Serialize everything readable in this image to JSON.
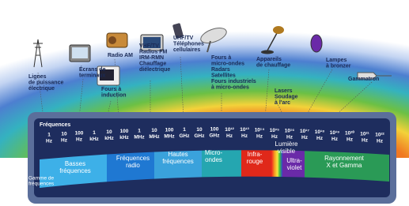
{
  "sources": [
    {
      "lines": [
        "Lignes",
        "de puissance",
        "électrique"
      ]
    },
    {
      "lines": [
        "Écrans de",
        "terminaux"
      ]
    },
    {
      "lines": [
        "Radio AM"
      ]
    },
    {
      "lines": [
        "Fours à",
        "induction"
      ]
    },
    {
      "lines": [
        "VHF/TV",
        "Radios FM",
        "IRM-RMN",
        "Chauffage",
        "diélectrique"
      ]
    },
    {
      "lines": [
        "UHF/TV",
        "Téléphones",
        "cellulaires"
      ]
    },
    {
      "lines": [
        "Fours à",
        "micro-ondes",
        "Radars",
        "Satellites",
        "Fours industriels",
        "à micro-ondes"
      ]
    },
    {
      "lines": [
        "Appareils",
        "de chauffage"
      ]
    },
    {
      "lines": [
        "Lasers",
        "Soudage",
        "à l'arc"
      ]
    },
    {
      "lines": [
        "Lampes",
        "à bronzer"
      ]
    },
    {
      "lines": [
        "Gammatron"
      ]
    }
  ],
  "frequency_label": "Fréquences",
  "range_label": [
    "Gamme de",
    "fréquences"
  ],
  "ticks": [
    {
      "number": "1",
      "unit": "Hz"
    },
    {
      "number": "10",
      "unit": "Hz"
    },
    {
      "number": "100",
      "unit": "Hz"
    },
    {
      "number": "1",
      "unit": "kHz"
    },
    {
      "number": "10",
      "unit": "kHz"
    },
    {
      "number": "100",
      "unit": "kHz"
    },
    {
      "number": "1",
      "unit": "MHz"
    },
    {
      "number": "10",
      "unit": "MHz"
    },
    {
      "number": "100",
      "unit": "MHz"
    },
    {
      "number": "1",
      "unit": "GHz"
    },
    {
      "number": "10",
      "unit": "GHz"
    },
    {
      "number": "100",
      "unit": "GHz"
    },
    {
      "number": "10¹²",
      "unit": "Hz"
    },
    {
      "number": "10¹³",
      "unit": "Hz"
    },
    {
      "number": "10¹⁴",
      "unit": "Hz"
    },
    {
      "number": "10¹⁵",
      "unit": "Hz"
    },
    {
      "number": "10¹⁶",
      "unit": "Hz"
    },
    {
      "number": "10¹⁷",
      "unit": "Hz"
    },
    {
      "number": "10¹⁸",
      "unit": "Hz"
    },
    {
      "number": "10¹⁹",
      "unit": "Hz"
    },
    {
      "number": "10²⁰",
      "unit": "Hz"
    },
    {
      "number": "10²¹",
      "unit": "Hz"
    },
    {
      "number": "10²²",
      "unit": "Hz"
    }
  ],
  "bands": [
    {
      "lines": [
        "Basses",
        "fréquences"
      ]
    },
    {
      "lines": [
        "Fréquences",
        "radio"
      ]
    },
    {
      "lines": [
        "Hautes",
        "fréquences"
      ]
    },
    {
      "lines": [
        "Micro-",
        "ondes"
      ]
    },
    {
      "lines": [
        "Infra-",
        "rouge"
      ]
    },
    {
      "lines": [
        "Lumière",
        "visible"
      ]
    },
    {
      "lines": [
        "Ultra-",
        "violet"
      ]
    },
    {
      "lines": [
        "Rayonnement",
        "X et Gamma"
      ]
    }
  ]
}
